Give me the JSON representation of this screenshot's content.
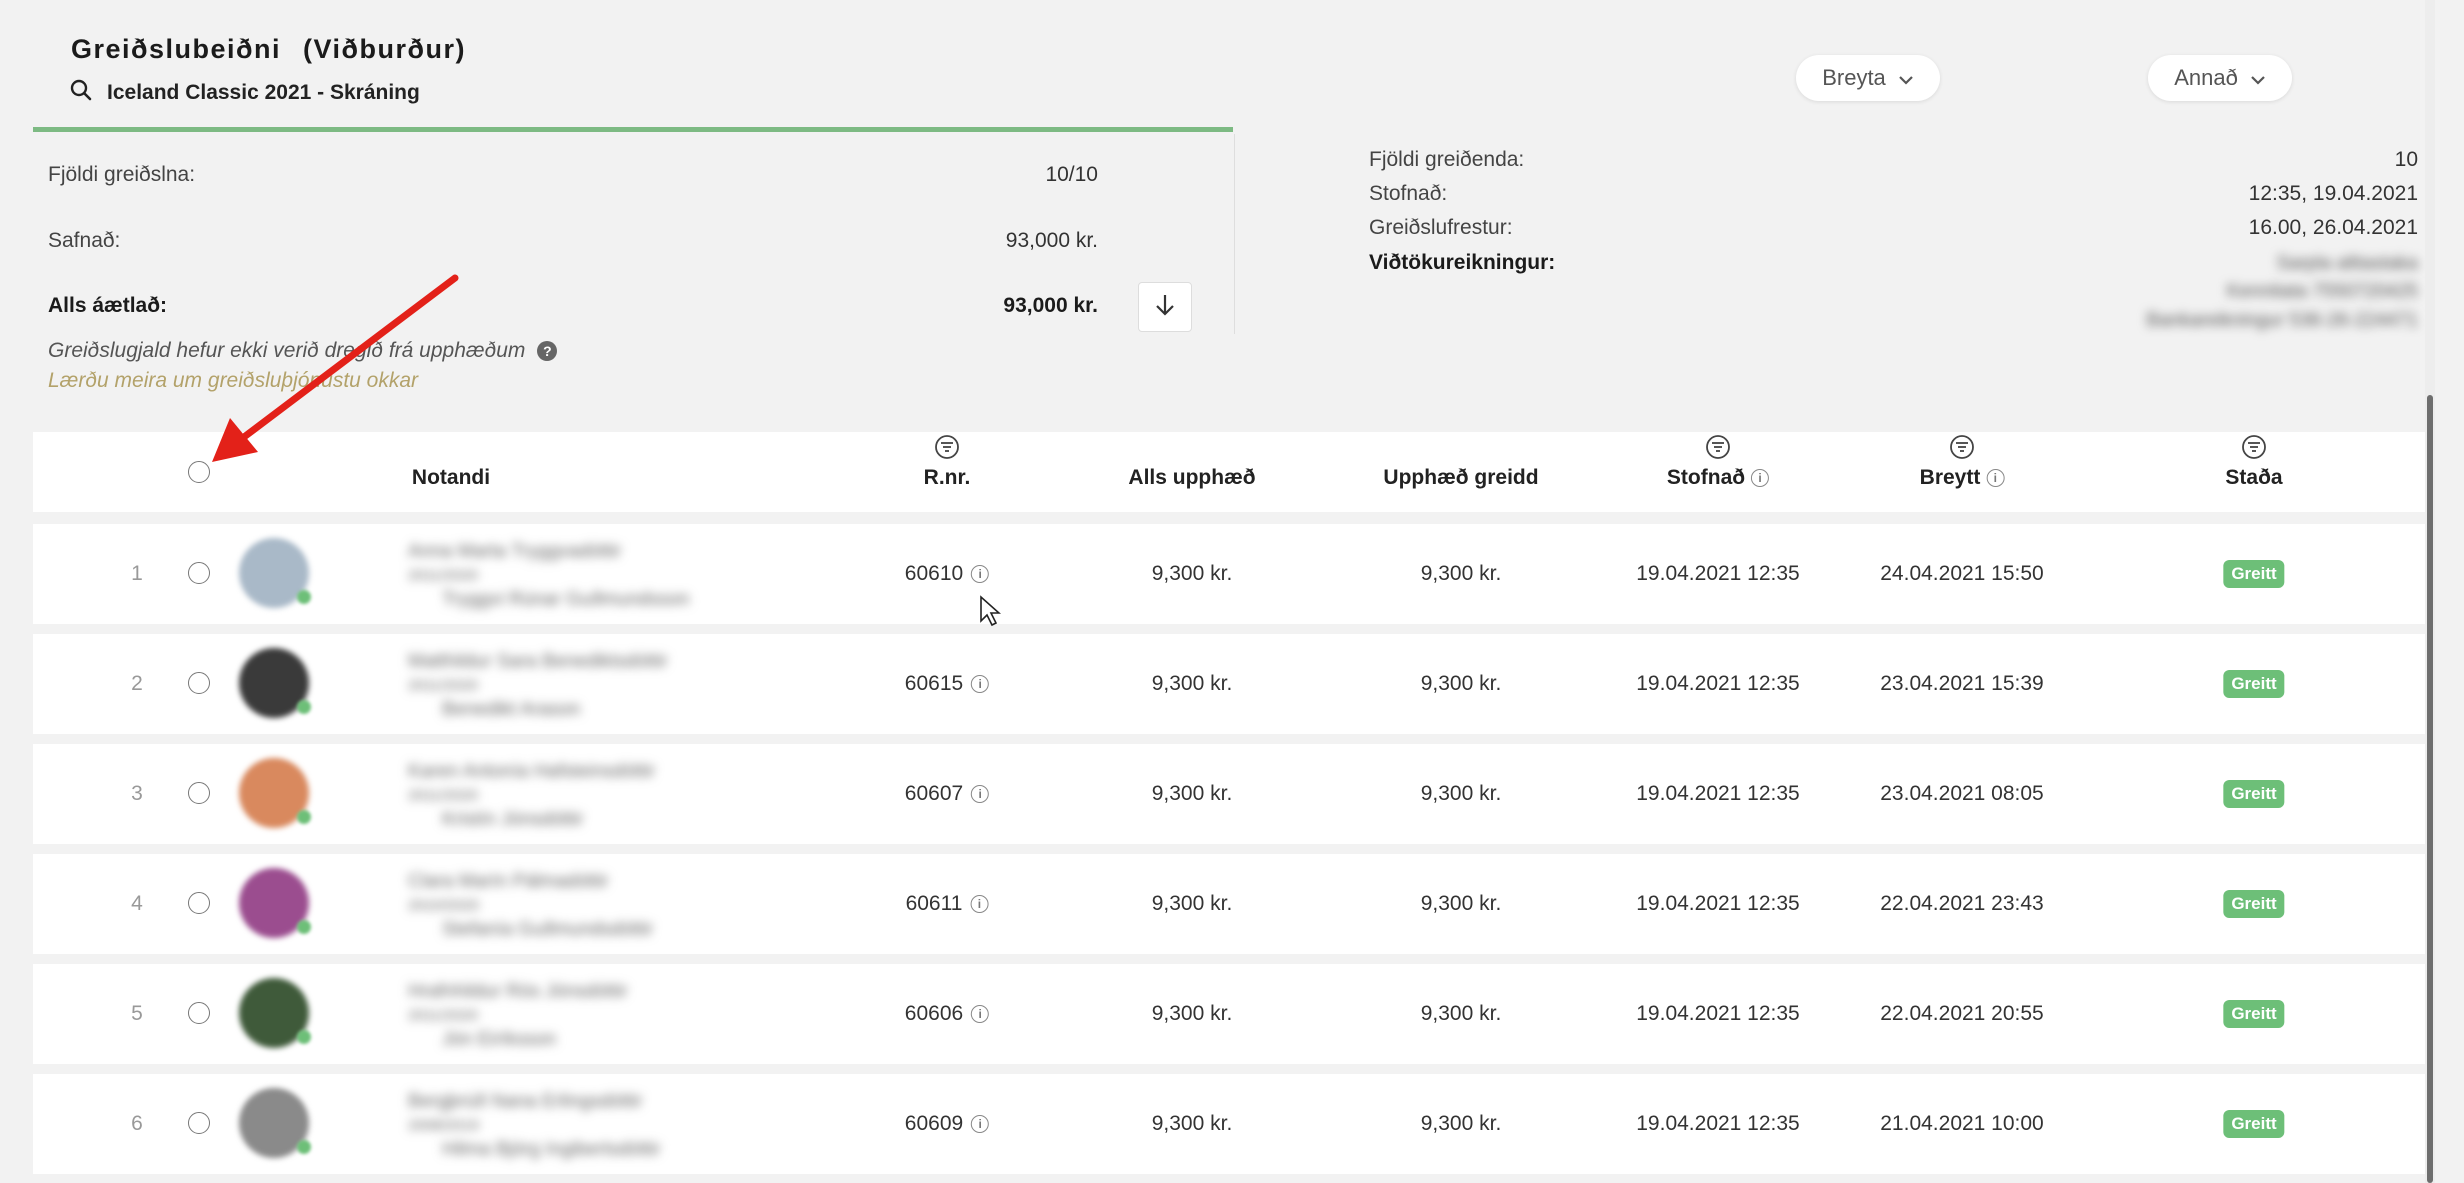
{
  "header": {
    "title": "Greiðslubeiðni",
    "title_sub": "(Viðburður)",
    "event_name": "Iceland Classic 2021 - Skráning",
    "buttons": {
      "edit": "Breyta",
      "other": "Annað"
    }
  },
  "progress": {
    "paid": 10,
    "total": 10,
    "fraction": 1.0
  },
  "summary_left": {
    "count_label": "Fjöldi greiðslna:",
    "count_value": "10/10",
    "collected_label": "Safnað:",
    "collected_value": "93,000 kr.",
    "expected_label": "Alls áætlað:",
    "expected_value": "93,000 kr.",
    "fee_note": "Greiðslugjald hefur ekki verið dregið frá upphæðum",
    "learn_more": "Lærðu meira um greiðsluþjónustu okkar"
  },
  "summary_right": {
    "payers_label": "Fjöldi greiðenda:",
    "payers_value": "10",
    "created_label": "Stofnað:",
    "created_value": "12:35, 19.04.2021",
    "due_label": "Greiðslufrestur:",
    "due_value": "16.00, 26.04.2021",
    "account_label": "Viðtökureikningur:",
    "account_lines": [
      "Sarpla alttastaka",
      "Kennitata 7550720425",
      "Bankareikningur 536-26-224471"
    ]
  },
  "table": {
    "headers": {
      "user": "Notandi",
      "ref": "R.nr.",
      "total": "Alls upphæð",
      "paid": "Upphæð greidd",
      "created": "Stofnað",
      "changed": "Breytt",
      "status": "Staða"
    },
    "rows": [
      {
        "index": "1",
        "user": [
          "Anna Marta Tryggvadóttir",
          "2011/2020",
          "Tryggvi Rúnar Guðmundsson"
        ],
        "ref": "60610",
        "total": "9,300 kr.",
        "paid": "9,300 kr.",
        "created": "19.04.2021 12:35",
        "changed": "24.04.2021 15:50",
        "status": "Greitt",
        "avatar_color": "#a9b9c8"
      },
      {
        "index": "2",
        "user": [
          "Matthildur Sara Benediktsdóttir",
          "2011/2020",
          "Benedikt Arason"
        ],
        "ref": "60615",
        "total": "9,300 kr.",
        "paid": "9,300 kr.",
        "created": "19.04.2021 12:35",
        "changed": "23.04.2021 15:39",
        "status": "Greitt",
        "avatar_color": "#3a3a3a"
      },
      {
        "index": "3",
        "user": [
          "Karen Antonía Hafsteinsdóttir",
          "2011/2020",
          "Kristín Jónsdóttir"
        ],
        "ref": "60607",
        "total": "9,300 kr.",
        "paid": "9,300 kr.",
        "created": "19.04.2021 12:35",
        "changed": "23.04.2021 08:05",
        "status": "Greitt",
        "avatar_color": "#d9895e"
      },
      {
        "index": "4",
        "user": [
          "Clara Marín Pálmadóttir",
          "2010/2020",
          "Stefanía Guðmundsdóttir"
        ],
        "ref": "60611",
        "total": "9,300 kr.",
        "paid": "9,300 kr.",
        "created": "19.04.2021 12:35",
        "changed": "22.04.2021 23:43",
        "status": "Greitt",
        "avatar_color": "#9b4d8f"
      },
      {
        "index": "5",
        "user": [
          "Hrafnhildur Rós Jónsdóttir",
          "2011/2020",
          "Jón Eiríksson"
        ],
        "ref": "60606",
        "total": "9,300 kr.",
        "paid": "9,300 kr.",
        "created": "19.04.2021 12:35",
        "changed": "22.04.2021 20:55",
        "status": "Greitt",
        "avatar_color": "#3f5a3a"
      },
      {
        "index": "6",
        "user": [
          "Bergþrúð Nana Erlingsdóttir",
          "2008/2019",
          "Hilma Björg Ingibertsdóttir"
        ],
        "ref": "60609",
        "total": "9,300 kr.",
        "paid": "9,300 kr.",
        "created": "19.04.2021 12:35",
        "changed": "21.04.2021 10:00",
        "status": "Greitt",
        "avatar_color": "#8a8a8a"
      }
    ]
  },
  "colors": {
    "accent_green": "#6dbf78",
    "progress": "#7dba83",
    "link": "#b3a26a",
    "arrow": "#e32119"
  },
  "icons": [
    "search-icon",
    "chevron-down-icon",
    "download-arrow-icon",
    "help-icon",
    "filter-icon",
    "info-icon",
    "cursor-icon",
    "red-arrow-annotation"
  ]
}
